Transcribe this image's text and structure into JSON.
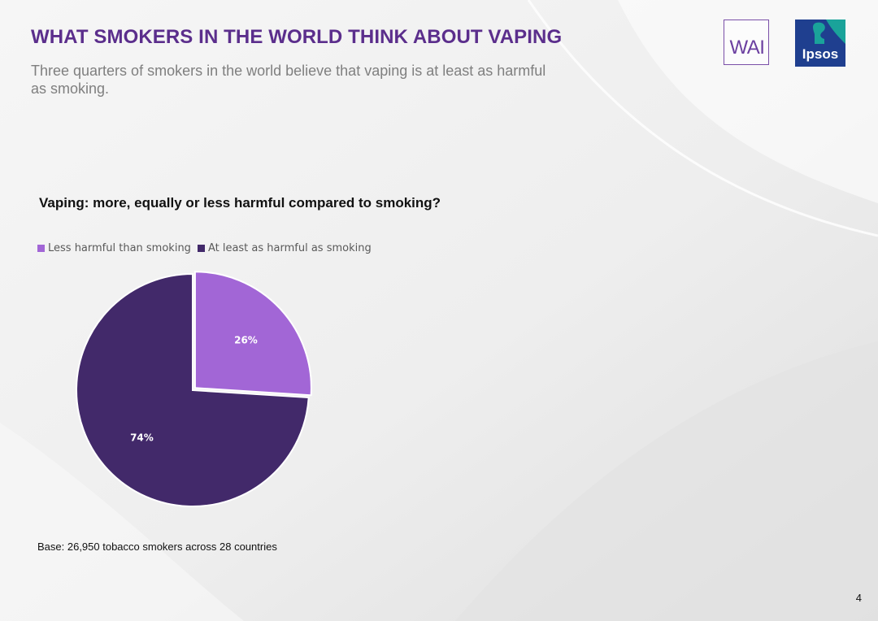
{
  "header": {
    "title": "WHAT SMOKERS IN THE WORLD THINK ABOUT VAPING",
    "subtitle": "Three quarters of smokers in the world believe that vaping is at least as harmful as smoking."
  },
  "logos": {
    "wai": "WAI",
    "ipsos": "Ipsos"
  },
  "chart_data": {
    "type": "pie",
    "title": "Vaping: more, equally or less harmful compared to smoking?",
    "legend_position": "top-left",
    "categories": [
      "Less harmful than smoking",
      "At least as harmful as smoking"
    ],
    "values": [
      26,
      74
    ],
    "labels": [
      "26%",
      "74%"
    ],
    "colors": [
      "#a266d6",
      "#42296a"
    ]
  },
  "footer": {
    "base": "Base: 26,950  tobacco smokers across 28 countries",
    "page_number": "4"
  }
}
